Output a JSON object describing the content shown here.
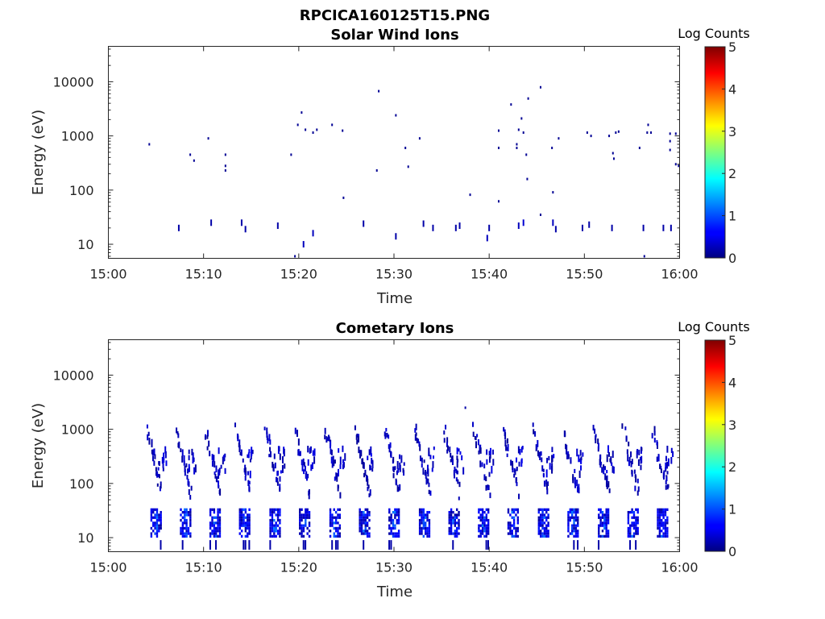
{
  "figure_title": "RPCICA160125T15.PNG",
  "colorbar": {
    "label": "Log Counts",
    "ticks": [
      "0",
      "1",
      "2",
      "3",
      "4",
      "5"
    ],
    "range": [
      0,
      5
    ],
    "colormap": "jet"
  },
  "chart_data": [
    {
      "type": "heatmap",
      "title": "Solar Wind Ions",
      "xlabel": "Time",
      "ylabel": "Energy (eV)",
      "xlim": [
        "15:00",
        "16:00"
      ],
      "ylim": [
        5.5,
        45000
      ],
      "yscale": "log",
      "x_ticks": [
        "15:00",
        "15:10",
        "15:20",
        "15:30",
        "15:40",
        "15:50",
        "16:00"
      ],
      "y_ticks": [
        "10",
        "100",
        "1000",
        "10000"
      ],
      "points": [
        {
          "t": 4.3,
          "e": 700,
          "v": 0.1
        },
        {
          "t": 7.4,
          "e": 20,
          "v": 0.2
        },
        {
          "t": 8.6,
          "e": 450,
          "v": 0.1
        },
        {
          "t": 9.0,
          "e": 350,
          "v": 0.1
        },
        {
          "t": 10.5,
          "e": 900,
          "v": 0.1
        },
        {
          "t": 10.8,
          "e": 25,
          "v": 0.2
        },
        {
          "t": 12.3,
          "e": 450,
          "v": 0.1
        },
        {
          "t": 12.3,
          "e": 280,
          "v": 0.1
        },
        {
          "t": 12.3,
          "e": 230,
          "v": 0.1
        },
        {
          "t": 14.0,
          "e": 25,
          "v": 0.2
        },
        {
          "t": 14.4,
          "e": 19,
          "v": 0.2
        },
        {
          "t": 17.8,
          "e": 22,
          "v": 0.2
        },
        {
          "t": 19.2,
          "e": 450,
          "v": 0.1
        },
        {
          "t": 19.6,
          "e": 6,
          "v": 0.1
        },
        {
          "t": 19.9,
          "e": 1600,
          "v": 0.1
        },
        {
          "t": 20.3,
          "e": 2700,
          "v": 0.1
        },
        {
          "t": 20.5,
          "e": 10,
          "v": 0.3
        },
        {
          "t": 20.7,
          "e": 1300,
          "v": 0.1
        },
        {
          "t": 21.5,
          "e": 1150,
          "v": 0.1
        },
        {
          "t": 21.5,
          "e": 16,
          "v": 0.3
        },
        {
          "t": 21.9,
          "e": 1300,
          "v": 0.1
        },
        {
          "t": 23.5,
          "e": 1600,
          "v": 0.1
        },
        {
          "t": 24.6,
          "e": 1250,
          "v": 0.1
        },
        {
          "t": 24.7,
          "e": 72,
          "v": 0.1
        },
        {
          "t": 26.8,
          "e": 24,
          "v": 0.2
        },
        {
          "t": 28.2,
          "e": 230,
          "v": 0.1
        },
        {
          "t": 28.4,
          "e": 6700,
          "v": 0.1
        },
        {
          "t": 30.2,
          "e": 2400,
          "v": 0.1
        },
        {
          "t": 30.2,
          "e": 14,
          "v": 0.2
        },
        {
          "t": 31.2,
          "e": 600,
          "v": 0.1
        },
        {
          "t": 31.5,
          "e": 270,
          "v": 0.1
        },
        {
          "t": 32.7,
          "e": 900,
          "v": 0.1
        },
        {
          "t": 33.1,
          "e": 24,
          "v": 0.2
        },
        {
          "t": 34.1,
          "e": 20,
          "v": 0.2
        },
        {
          "t": 36.5,
          "e": 20,
          "v": 0.2
        },
        {
          "t": 36.9,
          "e": 22,
          "v": 0.2
        },
        {
          "t": 38.0,
          "e": 82,
          "v": 0.1
        },
        {
          "t": 39.8,
          "e": 13,
          "v": 0.3
        },
        {
          "t": 40.0,
          "e": 20,
          "v": 0.2
        },
        {
          "t": 41.0,
          "e": 1250,
          "v": 0.1
        },
        {
          "t": 41.0,
          "e": 600,
          "v": 0.1
        },
        {
          "t": 41.0,
          "e": 62,
          "v": 0.1
        },
        {
          "t": 42.3,
          "e": 3800,
          "v": 0.1
        },
        {
          "t": 42.9,
          "e": 700,
          "v": 0.1
        },
        {
          "t": 42.9,
          "e": 600,
          "v": 0.1
        },
        {
          "t": 43.1,
          "e": 1300,
          "v": 0.1
        },
        {
          "t": 43.1,
          "e": 22,
          "v": 0.3
        },
        {
          "t": 43.4,
          "e": 2100,
          "v": 0.1
        },
        {
          "t": 43.6,
          "e": 1150,
          "v": 0.1
        },
        {
          "t": 43.6,
          "e": 25,
          "v": 0.4
        },
        {
          "t": 43.9,
          "e": 450,
          "v": 0.1
        },
        {
          "t": 44.0,
          "e": 160,
          "v": 0.1
        },
        {
          "t": 44.1,
          "e": 4900,
          "v": 0.1
        },
        {
          "t": 45.4,
          "e": 7900,
          "v": 0.1
        },
        {
          "t": 45.4,
          "e": 35,
          "v": 0.1
        },
        {
          "t": 46.6,
          "e": 600,
          "v": 0.1
        },
        {
          "t": 46.7,
          "e": 91,
          "v": 0.1
        },
        {
          "t": 46.7,
          "e": 25,
          "v": 0.3
        },
        {
          "t": 47.0,
          "e": 19,
          "v": 0.2
        },
        {
          "t": 47.3,
          "e": 900,
          "v": 0.1
        },
        {
          "t": 49.8,
          "e": 20,
          "v": 0.2
        },
        {
          "t": 50.3,
          "e": 1150,
          "v": 0.1
        },
        {
          "t": 50.5,
          "e": 23,
          "v": 0.2
        },
        {
          "t": 50.7,
          "e": 1000,
          "v": 0.1
        },
        {
          "t": 52.6,
          "e": 1000,
          "v": 0.1
        },
        {
          "t": 52.9,
          "e": 20,
          "v": 0.2
        },
        {
          "t": 53.0,
          "e": 480,
          "v": 0.1
        },
        {
          "t": 53.1,
          "e": 380,
          "v": 0.1
        },
        {
          "t": 53.3,
          "e": 1150,
          "v": 0.1
        },
        {
          "t": 53.6,
          "e": 1200,
          "v": 0.1
        },
        {
          "t": 55.8,
          "e": 600,
          "v": 0.1
        },
        {
          "t": 56.3,
          "e": 6,
          "v": 0.1
        },
        {
          "t": 56.2,
          "e": 20,
          "v": 0.2
        },
        {
          "t": 56.6,
          "e": 1150,
          "v": 0.1
        },
        {
          "t": 56.7,
          "e": 1600,
          "v": 0.1
        },
        {
          "t": 57.0,
          "e": 1150,
          "v": 0.1
        },
        {
          "t": 58.3,
          "e": 20,
          "v": 0.2
        },
        {
          "t": 59.0,
          "e": 1100,
          "v": 0.1
        },
        {
          "t": 59.0,
          "e": 800,
          "v": 0.1
        },
        {
          "t": 59.0,
          "e": 550,
          "v": 0.1
        },
        {
          "t": 59.1,
          "e": 20,
          "v": 0.2
        },
        {
          "t": 59.6,
          "e": 1100,
          "v": 0.1
        },
        {
          "t": 59.6,
          "e": 300,
          "v": 0.1
        },
        {
          "t": 59.9,
          "e": 280,
          "v": 0.1
        }
      ]
    },
    {
      "type": "heatmap",
      "title": "Cometary Ions",
      "xlabel": "Time",
      "ylabel": "Energy (eV)",
      "xlim": [
        "15:00",
        "16:00"
      ],
      "ylim": [
        5.5,
        45000
      ],
      "yscale": "log",
      "x_ticks": [
        "15:00",
        "15:10",
        "15:20",
        "15:30",
        "15:40",
        "15:50",
        "16:00"
      ],
      "y_ticks": [
        "10",
        "100",
        "1000",
        "10000"
      ],
      "sweep_start_minutes": [
        4.5,
        7.6,
        10.7,
        13.8,
        17.0,
        20.1,
        23.3,
        26.4,
        29.5,
        32.7,
        35.8,
        38.9,
        42.0,
        45.2,
        48.3,
        51.5,
        54.6,
        57.7
      ],
      "sweep_low_energy_band_eV": [
        10,
        32
      ],
      "sweep_high_energy_band_eV": [
        70,
        1000
      ],
      "highest_isolated_point": {
        "t": 37.5,
        "e": 2500,
        "v": 0.2
      },
      "value_range_observed": [
        0,
        1.3
      ]
    }
  ]
}
